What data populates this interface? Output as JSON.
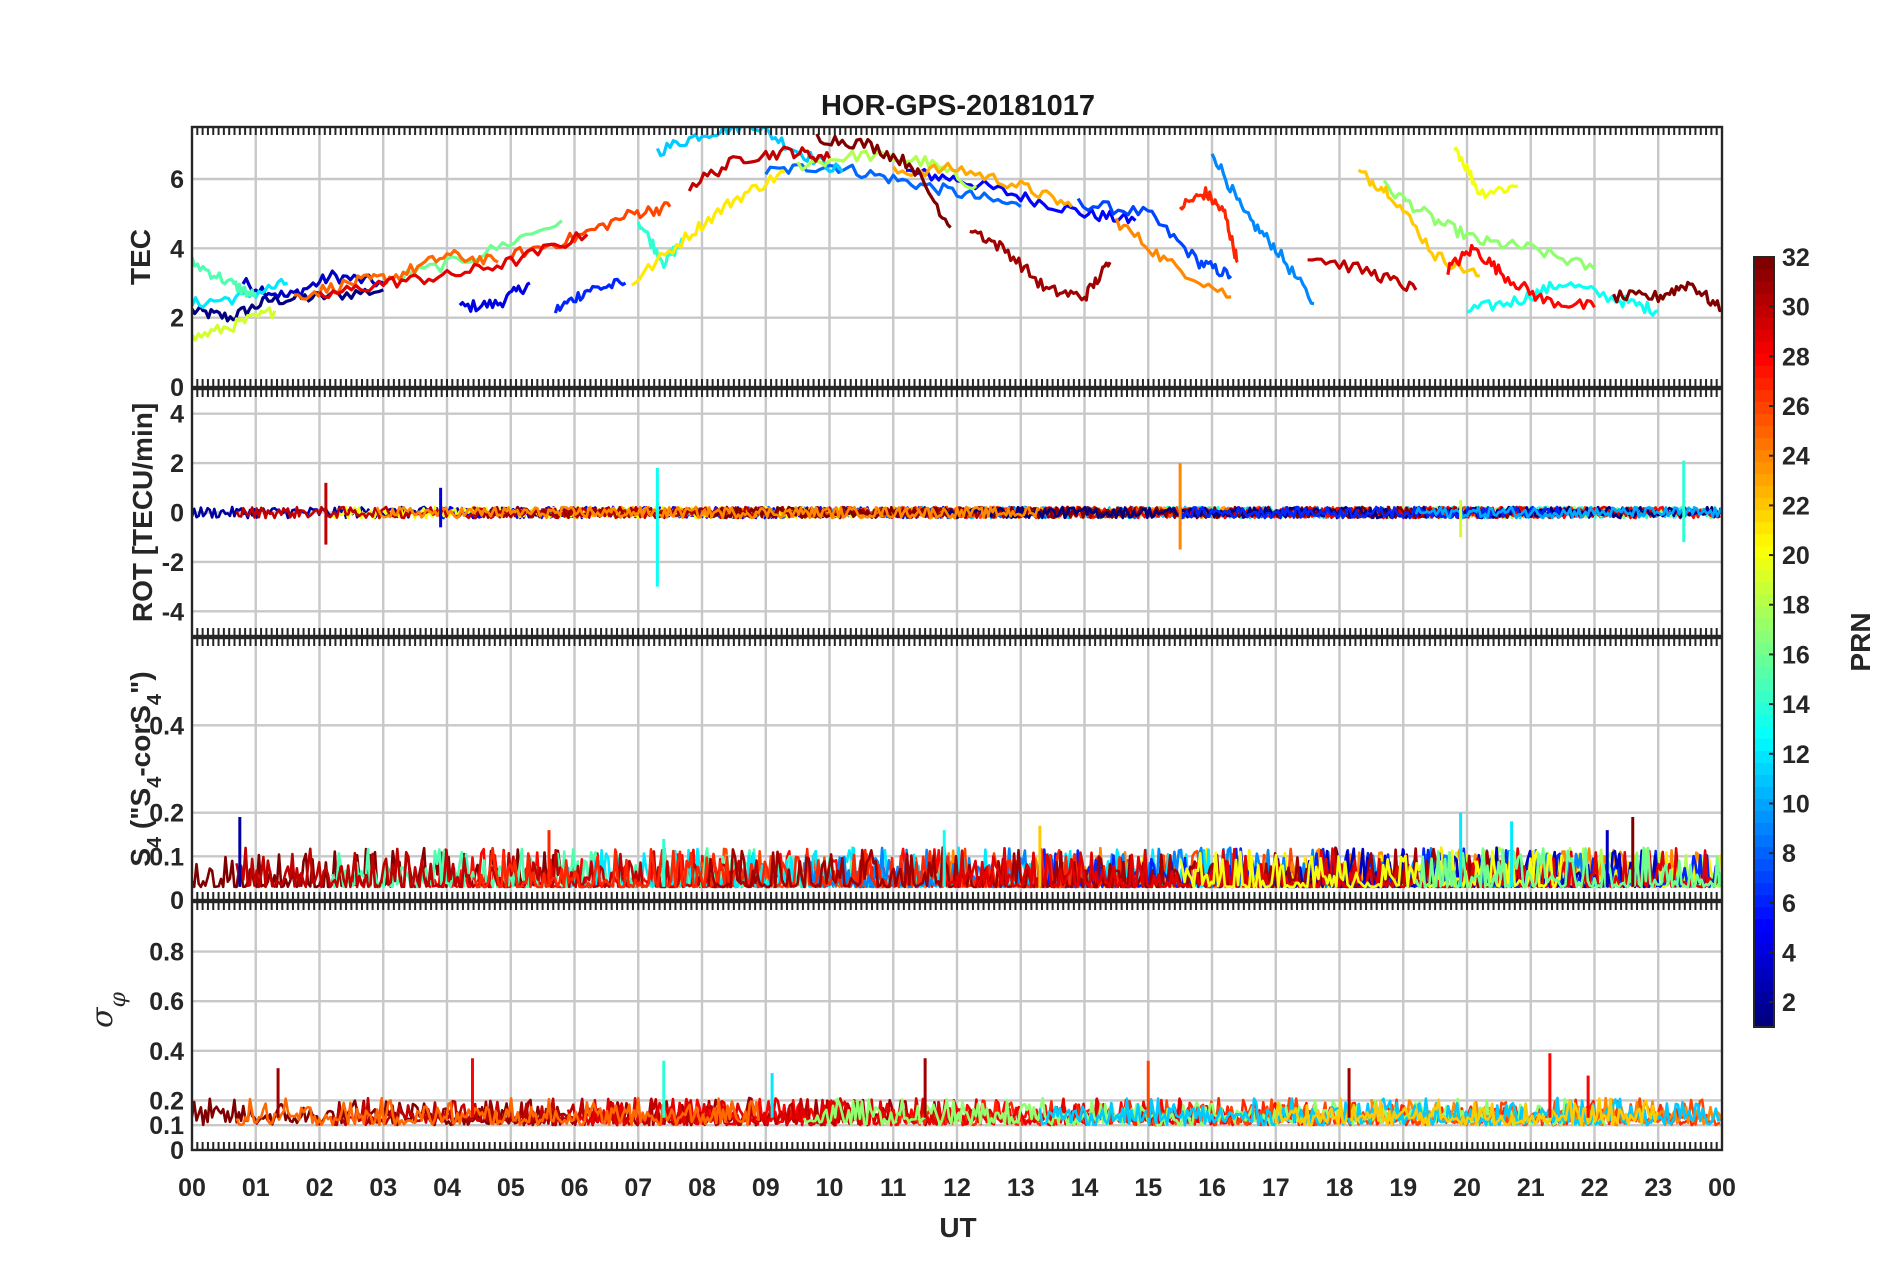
{
  "title": "HOR-GPS-20181017",
  "xlabel": "UT",
  "x_ticks": [
    "00",
    "01",
    "02",
    "03",
    "04",
    "05",
    "06",
    "07",
    "08",
    "09",
    "10",
    "11",
    "12",
    "13",
    "14",
    "15",
    "16",
    "17",
    "18",
    "19",
    "20",
    "21",
    "22",
    "23",
    "00"
  ],
  "colorbar": {
    "label": "PRN",
    "range": [
      1,
      32
    ],
    "tick_labels": [
      "2",
      "4",
      "6",
      "8",
      "10",
      "12",
      "14",
      "16",
      "18",
      "20",
      "22",
      "24",
      "26",
      "28",
      "30",
      "32"
    ]
  },
  "colors": {
    "frame": "#262626",
    "grid": "#c8c8c8"
  },
  "chart_data": [
    {
      "type": "line",
      "panel": "TEC",
      "ylabel": "TEC",
      "xlim": [
        0,
        24
      ],
      "ylim": [
        0,
        7.5
      ],
      "y_ticks": [
        "0",
        "2",
        "4",
        "6"
      ],
      "description_series": "One line per GPS satellite PRN (1-32), coloured by PRN",
      "series": [
        {
          "prn": 1,
          "points": [
            [
              0.0,
              2.2
            ],
            [
              0.6,
              2.0
            ],
            [
              1.2,
              2.5
            ],
            [
              2.0,
              2.6
            ],
            [
              3.0,
              2.8
            ]
          ]
        },
        {
          "prn": 3,
          "points": [
            [
              0.8,
              3.0
            ],
            [
              1.5,
              2.6
            ],
            [
              2.2,
              3.2
            ],
            [
              3.0,
              3.0
            ]
          ]
        },
        {
          "prn": 4,
          "points": [
            [
              4.2,
              2.3
            ],
            [
              4.8,
              2.4
            ],
            [
              5.3,
              3.0
            ]
          ]
        },
        {
          "prn": 5,
          "points": [
            [
              11.2,
              6.2
            ],
            [
              12.0,
              6.0
            ],
            [
              13.0,
              5.5
            ],
            [
              14.0,
              5.0
            ],
            [
              14.8,
              4.8
            ]
          ]
        },
        {
          "prn": 6,
          "points": [
            [
              5.7,
              2.2
            ],
            [
              6.2,
              2.8
            ],
            [
              6.8,
              3.0
            ]
          ]
        },
        {
          "prn": 7,
          "points": [
            [
              13.9,
              5.3
            ],
            [
              15.0,
              5.0
            ],
            [
              15.8,
              3.6
            ],
            [
              16.3,
              3.2
            ]
          ]
        },
        {
          "prn": 8,
          "points": [
            [
              9.0,
              6.2
            ],
            [
              10.0,
              6.4
            ],
            [
              11.0,
              6.0
            ],
            [
              12.0,
              5.6
            ],
            [
              13.0,
              5.2
            ]
          ]
        },
        {
          "prn": 9,
          "points": [
            [
              16.0,
              6.8
            ],
            [
              16.5,
              5.0
            ],
            [
              17.0,
              4.0
            ],
            [
              17.6,
              2.4
            ]
          ]
        },
        {
          "prn": 11,
          "points": [
            [
              7.3,
              6.8
            ],
            [
              8.0,
              7.3
            ],
            [
              8.8,
              7.6
            ],
            [
              9.5,
              6.8
            ],
            [
              10.2,
              6.2
            ]
          ]
        },
        {
          "prn": 12,
          "points": [
            [
              0.0,
              2.4
            ],
            [
              0.8,
              2.6
            ],
            [
              1.5,
              3.0
            ]
          ]
        },
        {
          "prn": 13,
          "points": [
            [
              20.0,
              2.2
            ],
            [
              20.8,
              2.5
            ],
            [
              21.5,
              3.0
            ],
            [
              22.4,
              2.5
            ],
            [
              23.0,
              2.2
            ]
          ]
        },
        {
          "prn": 14,
          "points": [
            [
              7.0,
              4.8
            ],
            [
              7.4,
              3.6
            ],
            [
              7.7,
              4.2
            ]
          ]
        },
        {
          "prn": 15,
          "points": [
            [
              0.0,
              3.6
            ],
            [
              0.6,
              3.0
            ],
            [
              1.0,
              2.6
            ]
          ]
        },
        {
          "prn": 16,
          "points": [
            [
              3.3,
              3.2
            ],
            [
              4.5,
              3.8
            ],
            [
              5.8,
              4.8
            ]
          ]
        },
        {
          "prn": 17,
          "points": [
            [
              18.7,
              5.8
            ],
            [
              19.5,
              4.8
            ],
            [
              20.2,
              4.2
            ],
            [
              21.0,
              4.0
            ],
            [
              22.0,
              3.4
            ]
          ]
        },
        {
          "prn": 18,
          "points": [
            [
              9.5,
              6.4
            ],
            [
              10.5,
              6.7
            ],
            [
              11.5,
              6.5
            ],
            [
              12.3,
              5.8
            ]
          ]
        },
        {
          "prn": 19,
          "points": [
            [
              0.0,
              1.4
            ],
            [
              0.7,
              1.8
            ],
            [
              1.3,
              2.2
            ]
          ]
        },
        {
          "prn": 20,
          "points": [
            [
              19.8,
              7.0
            ],
            [
              20.2,
              5.6
            ],
            [
              20.8,
              5.8
            ]
          ]
        },
        {
          "prn": 21,
          "points": [
            [
              6.9,
              3.0
            ],
            [
              7.8,
              4.4
            ],
            [
              8.5,
              5.4
            ],
            [
              9.3,
              6.2
            ]
          ]
        },
        {
          "prn": 22,
          "points": [
            [
              18.3,
              6.2
            ],
            [
              18.8,
              5.6
            ],
            [
              19.5,
              3.8
            ],
            [
              20.2,
              3.2
            ]
          ]
        },
        {
          "prn": 23,
          "points": [
            [
              11.0,
              6.2
            ],
            [
              12.0,
              6.3
            ],
            [
              13.0,
              5.8
            ],
            [
              13.8,
              5.2
            ]
          ]
        },
        {
          "prn": 24,
          "points": [
            [
              14.5,
              4.8
            ],
            [
              15.3,
              3.6
            ],
            [
              16.3,
              2.6
            ]
          ]
        },
        {
          "prn": 25,
          "points": [
            [
              1.6,
              2.6
            ],
            [
              2.5,
              3.0
            ],
            [
              3.2,
              3.2
            ],
            [
              4.0,
              3.8
            ],
            [
              4.8,
              3.6
            ]
          ]
        },
        {
          "prn": 26,
          "points": [
            [
              5.0,
              3.8
            ],
            [
              6.0,
              4.3
            ],
            [
              6.9,
              5.0
            ],
            [
              7.5,
              5.2
            ]
          ]
        },
        {
          "prn": 27,
          "points": [
            [
              15.5,
              5.2
            ],
            [
              15.9,
              5.6
            ],
            [
              16.2,
              5.0
            ],
            [
              16.4,
              3.6
            ]
          ]
        },
        {
          "prn": 28,
          "points": [
            [
              19.7,
              3.4
            ],
            [
              20.1,
              4.0
            ],
            [
              20.6,
              3.2
            ],
            [
              21.2,
              2.5
            ],
            [
              22.0,
              2.3
            ]
          ]
        },
        {
          "prn": 29,
          "points": [
            [
              2.0,
              2.6
            ],
            [
              3.0,
              3.0
            ],
            [
              4.0,
              3.2
            ],
            [
              5.0,
              3.6
            ],
            [
              6.2,
              4.4
            ]
          ]
        },
        {
          "prn": 30,
          "points": [
            [
              7.8,
              5.8
            ],
            [
              8.6,
              6.6
            ],
            [
              9.4,
              6.8
            ],
            [
              10.0,
              6.6
            ]
          ]
        },
        {
          "prn": 31,
          "points": [
            [
              12.2,
              4.6
            ],
            [
              12.8,
              3.9
            ],
            [
              13.4,
              2.8
            ],
            [
              14.0,
              2.6
            ],
            [
              14.4,
              3.6
            ]
          ]
        },
        {
          "prn": 32,
          "points": [
            [
              9.8,
              7.2
            ],
            [
              10.6,
              7.0
            ],
            [
              11.3,
              6.4
            ],
            [
              11.9,
              4.6
            ]
          ]
        },
        {
          "prn": 30,
          "points": [
            [
              17.5,
              3.8
            ],
            [
              18.5,
              3.3
            ],
            [
              19.2,
              2.8
            ]
          ]
        },
        {
          "prn": 32,
          "points": [
            [
              22.3,
              2.6
            ],
            [
              23.0,
              2.6
            ],
            [
              23.5,
              3.0
            ],
            [
              24.0,
              2.2
            ]
          ]
        }
      ]
    },
    {
      "type": "line",
      "panel": "ROT",
      "ylabel": "ROT [TECU/min]",
      "xlim": [
        0,
        24
      ],
      "ylim": [
        -5,
        5
      ],
      "y_ticks": [
        "-4",
        "-2",
        "0",
        "2",
        "4"
      ],
      "baseline": 0,
      "spikes": [
        {
          "x": 2.1,
          "min": -1.3,
          "max": 1.2
        },
        {
          "x": 3.9,
          "min": -0.6,
          "max": 1.0
        },
        {
          "x": 7.3,
          "min": -3.0,
          "max": 1.8
        },
        {
          "x": 15.5,
          "min": -1.5,
          "max": 2.0
        },
        {
          "x": 19.9,
          "min": -1.0,
          "max": 0.5
        },
        {
          "x": 23.4,
          "min": -1.2,
          "max": 2.1
        }
      ]
    },
    {
      "type": "line",
      "panel": "S4",
      "ylabel": "S4 (\"S4-corS4\")",
      "xlim": [
        0,
        24
      ],
      "ylim": [
        0,
        0.6
      ],
      "y_ticks": [
        "0",
        "0.1",
        "0.2",
        "0.4"
      ],
      "baseline": 0.03,
      "spikes": [
        {
          "x": 0.75,
          "value": 0.19
        },
        {
          "x": 5.6,
          "value": 0.16
        },
        {
          "x": 7.4,
          "value": 0.14
        },
        {
          "x": 11.8,
          "value": 0.16
        },
        {
          "x": 13.3,
          "value": 0.17
        },
        {
          "x": 19.9,
          "value": 0.2
        },
        {
          "x": 20.7,
          "value": 0.18
        },
        {
          "x": 22.2,
          "value": 0.16
        },
        {
          "x": 22.6,
          "value": 0.19
        }
      ]
    },
    {
      "type": "line",
      "panel": "sigma_phi",
      "ylabel": "σφ",
      "xlim": [
        0,
        24
      ],
      "ylim": [
        0,
        1.0
      ],
      "y_ticks": [
        "0",
        "0.1",
        "0.2",
        "0.4",
        "0.6",
        "0.8"
      ],
      "baseline": 0.13,
      "spikes": [
        {
          "x": 1.35,
          "value": 0.33
        },
        {
          "x": 4.4,
          "value": 0.37
        },
        {
          "x": 7.4,
          "value": 0.36
        },
        {
          "x": 9.1,
          "value": 0.31
        },
        {
          "x": 11.5,
          "value": 0.37
        },
        {
          "x": 15.0,
          "value": 0.36
        },
        {
          "x": 18.15,
          "value": 0.33
        },
        {
          "x": 21.3,
          "value": 0.39
        },
        {
          "x": 21.9,
          "value": 0.3
        }
      ]
    }
  ]
}
